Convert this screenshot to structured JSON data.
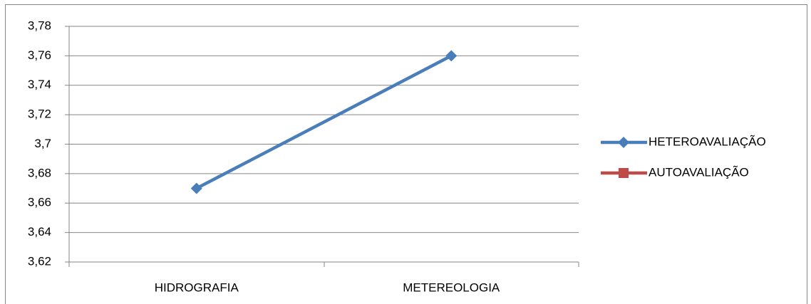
{
  "chart_data": {
    "type": "line",
    "categories": [
      "HIDROGRAFIA",
      "METEREOLOGIA"
    ],
    "series": [
      {
        "name": "HETEROAVALIAÇÃO",
        "color": "#4a7ebb",
        "marker": "diamond",
        "values": [
          3.67,
          3.76
        ]
      },
      {
        "name": "AUTOAVALIAÇÃO",
        "color": "#be4b48",
        "marker": "square",
        "values": [
          null,
          null
        ]
      }
    ],
    "ylim": [
      3.62,
      3.78
    ],
    "yticks": [
      {
        "value": 3.62,
        "label": "3,62"
      },
      {
        "value": 3.64,
        "label": "3,64"
      },
      {
        "value": 3.66,
        "label": "3,66"
      },
      {
        "value": 3.68,
        "label": "3,68"
      },
      {
        "value": 3.7,
        "label": "3,7"
      },
      {
        "value": 3.72,
        "label": "3,72"
      },
      {
        "value": 3.74,
        "label": "3,74"
      },
      {
        "value": 3.76,
        "label": "3,76"
      },
      {
        "value": 3.78,
        "label": "3,78"
      }
    ],
    "grid": true,
    "legend": "right"
  }
}
